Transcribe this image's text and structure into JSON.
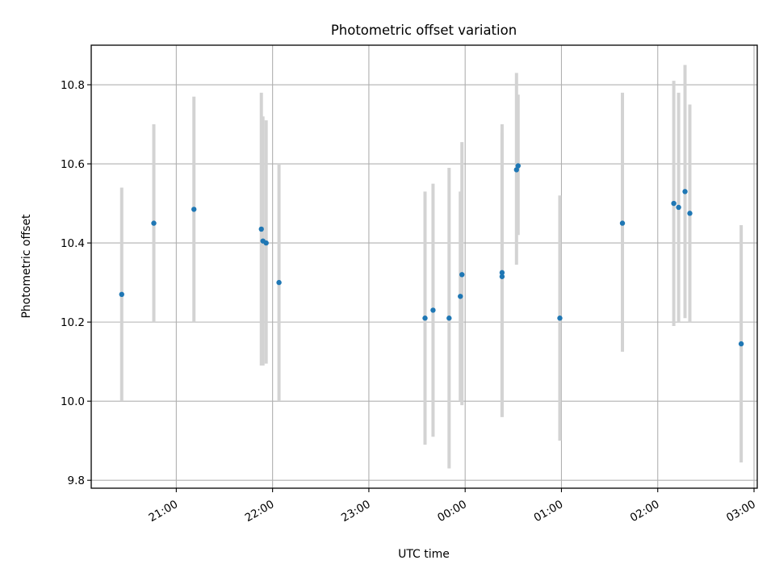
{
  "chart_data": {
    "type": "scatter",
    "title": "Photometric offset variation",
    "xlabel": "UTC time",
    "ylabel": "Photometric offset",
    "x_axis_type": "time",
    "xlim": [
      "20:07",
      "03:02"
    ],
    "ylim": [
      9.78,
      10.9
    ],
    "x_ticks": [
      "21:00",
      "22:00",
      "23:00",
      "00:00",
      "01:00",
      "02:00",
      "03:00"
    ],
    "y_ticks": [
      "9.8",
      "10.0",
      "10.2",
      "10.4",
      "10.6",
      "10.8"
    ],
    "grid": true,
    "marker_color": "#1f77b4",
    "errorbar_color": "#d3d3d3",
    "points": [
      {
        "x": "20:26",
        "y": 10.27,
        "ylow": 10.0,
        "yhigh": 10.54
      },
      {
        "x": "20:46",
        "y": 10.45,
        "ylow": 10.2,
        "yhigh": 10.7
      },
      {
        "x": "21:11",
        "y": 10.485,
        "ylow": 10.2,
        "yhigh": 10.77
      },
      {
        "x": "21:53",
        "y": 10.435,
        "ylow": 10.09,
        "yhigh": 10.78
      },
      {
        "x": "21:54",
        "y": 10.405,
        "ylow": 10.09,
        "yhigh": 10.72
      },
      {
        "x": "21:56",
        "y": 10.4,
        "ylow": 10.095,
        "yhigh": 10.71
      },
      {
        "x": "22:04",
        "y": 10.3,
        "ylow": 10.0,
        "yhigh": 10.6
      },
      {
        "x": "23:35",
        "y": 10.21,
        "ylow": 9.89,
        "yhigh": 10.53
      },
      {
        "x": "23:40",
        "y": 10.23,
        "ylow": 9.91,
        "yhigh": 10.55
      },
      {
        "x": "23:50",
        "y": 10.21,
        "ylow": 9.83,
        "yhigh": 10.59
      },
      {
        "x": "23:57",
        "y": 10.265,
        "ylow": 10.0,
        "yhigh": 10.53
      },
      {
        "x": "23:58",
        "y": 10.32,
        "ylow": 9.99,
        "yhigh": 10.655
      },
      {
        "x": "00:23",
        "y": 10.325,
        "ylow": 9.96,
        "yhigh": 10.7
      },
      {
        "x": "00:23",
        "y": 10.315,
        "ylow": 9.96,
        "yhigh": 10.68
      },
      {
        "x": "00:32",
        "y": 10.585,
        "ylow": 10.345,
        "yhigh": 10.83
      },
      {
        "x": "00:33",
        "y": 10.595,
        "ylow": 10.42,
        "yhigh": 10.775
      },
      {
        "x": "00:59",
        "y": 10.21,
        "ylow": 9.9,
        "yhigh": 10.52
      },
      {
        "x": "01:38",
        "y": 10.45,
        "ylow": 10.125,
        "yhigh": 10.78
      },
      {
        "x": "02:10",
        "y": 10.5,
        "ylow": 10.19,
        "yhigh": 10.81
      },
      {
        "x": "02:13",
        "y": 10.49,
        "ylow": 10.2,
        "yhigh": 10.78
      },
      {
        "x": "02:17",
        "y": 10.53,
        "ylow": 10.21,
        "yhigh": 10.85
      },
      {
        "x": "02:20",
        "y": 10.475,
        "ylow": 10.2,
        "yhigh": 10.75
      },
      {
        "x": "02:52",
        "y": 10.145,
        "ylow": 9.845,
        "yhigh": 10.445
      }
    ]
  }
}
